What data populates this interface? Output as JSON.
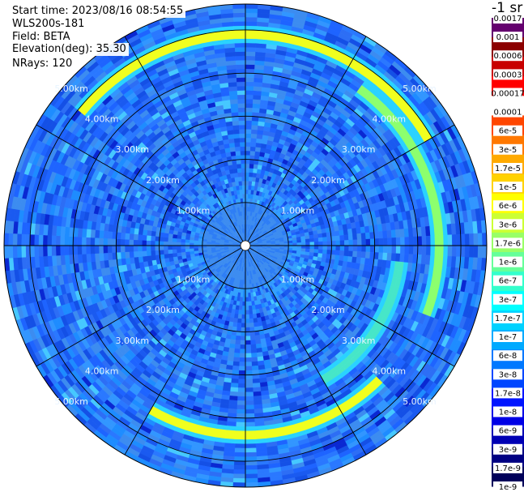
{
  "info": {
    "start_time": "Start time: 2023/08/16 08:54:55",
    "instrument": "WLS200s-181",
    "field": "Field: BETA",
    "elevation": "Elevation(deg): 35.30",
    "nrays": "NRays: 120"
  },
  "colorbar": {
    "unit_label": "-1 sr",
    "colors": [
      "#64006e",
      "#8c0000",
      "#c80000",
      "#ff0000",
      "#ffffff",
      "#ff4600",
      "#ff7800",
      "#ffaa00",
      "#ffd200",
      "#ffff00",
      "#ccff33",
      "#99ff66",
      "#66ff99",
      "#33ffcc",
      "#00ffff",
      "#00d2ff",
      "#00aaff",
      "#0078ff",
      "#0046ff",
      "#0014ff",
      "#0000e6",
      "#0000b4",
      "#000082",
      "#00005a"
    ],
    "labels": [
      "0.0017",
      "0.001",
      "0.0006",
      "0.0003",
      "0.00017",
      "0.0001",
      "6e-5",
      "3e-5",
      "1.7e-5",
      "1e-5",
      "6e-6",
      "3e-6",
      "1.7e-6",
      "1e-6",
      "6e-7",
      "3e-7",
      "1.7e-7",
      "1e-7",
      "6e-8",
      "3e-8",
      "1.7e-8",
      "1e-8",
      "6e-9",
      "3e-9",
      "1.7e-9",
      "1e-9"
    ]
  },
  "chart_data": {
    "type": "heatmap",
    "projection": "polar-ppi",
    "field": "BETA",
    "elevation_deg": 35.3,
    "n_rays": 120,
    "max_range_km": 5.6,
    "range_rings_km": [
      1,
      2,
      3,
      4,
      5
    ],
    "ring_labels": [
      "1.00km",
      "2.00km",
      "3.00km",
      "4.00km",
      "5.00km"
    ],
    "spoke_angles_deg": [
      0,
      30,
      60,
      90,
      120,
      150,
      180,
      210,
      240,
      270,
      300,
      330
    ],
    "background_level": "1e-8",
    "features": [
      {
        "description": "bright ring arc, upper",
        "range_km": 4.9,
        "azimuth_deg": [
          -50,
          60
        ],
        "level": "1e-5"
      },
      {
        "description": "bright ring arc, right",
        "range_km": 4.5,
        "azimuth_deg": [
          35,
          110
        ],
        "level": "3e-6"
      },
      {
        "description": "bright ring arc, lower",
        "range_km": 4.4,
        "azimuth_deg": [
          135,
          210
        ],
        "level": "1e-5"
      },
      {
        "description": "inner arc, lower right",
        "range_km": 3.6,
        "azimuth_deg": [
          95,
          150
        ],
        "level": "1.7e-6"
      }
    ]
  }
}
